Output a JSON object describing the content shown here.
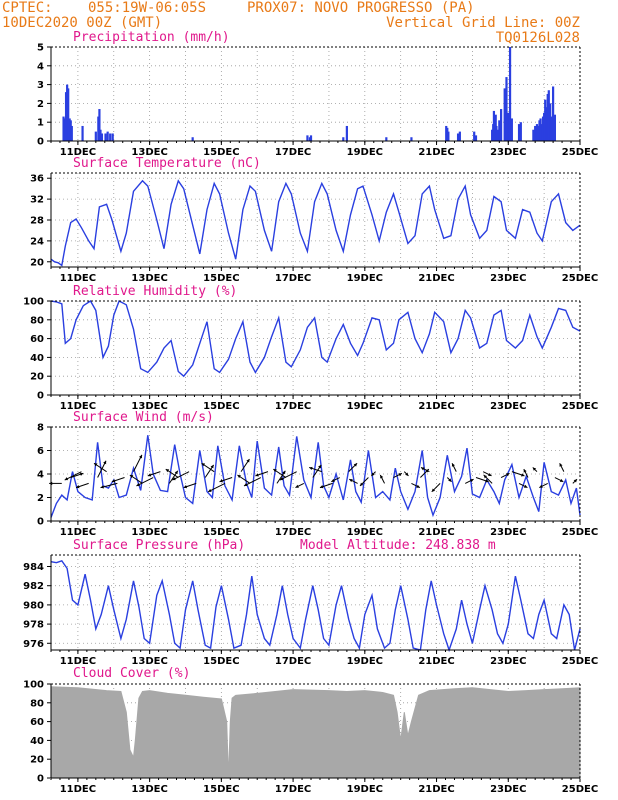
{
  "header": {
    "line1_left": "CPTEC:",
    "line1_coords": "055:19W-06:05S",
    "line1_station": "PROX07: NOVO PROGRESSO (PA)",
    "line2_left": "10DEC2020 00Z (GMT)",
    "line2_right": "Vertical Grid Line: 00Z",
    "line3_right": "TQ0126L028"
  },
  "colors": {
    "header": "#e87a17",
    "title": "#e0188c",
    "line": "#2a3fe0",
    "bar": "#2a3fe0",
    "cloud": "#a8a8a8",
    "arrow": "#000000"
  },
  "chart_data": [
    {
      "id": "precip",
      "type": "bar",
      "title": "Precipitation (mm/h)",
      "ylim": [
        0,
        5
      ],
      "yticks": [
        "0",
        "1",
        "2",
        "3",
        "4",
        "5"
      ],
      "xlim": [
        10.25,
        25
      ],
      "xticks": [
        "11DEC",
        "13DEC",
        "15DEC",
        "17DEC",
        "19DEC",
        "21DEC",
        "23DEC",
        "25DEC"
      ],
      "grid": true,
      "x": [
        10.6,
        10.63,
        10.67,
        10.7,
        10.73,
        10.77,
        10.8,
        10.83,
        11.13,
        11.5,
        11.57,
        11.6,
        11.63,
        11.67,
        11.77,
        11.83,
        11.9,
        11.97,
        14.2,
        17.4,
        17.47,
        17.5,
        18.4,
        18.5,
        19.6,
        20.3,
        21.27,
        21.3,
        21.33,
        21.6,
        21.65,
        22.05,
        22.1,
        22.55,
        22.58,
        22.6,
        22.65,
        22.67,
        22.7,
        22.75,
        22.8,
        22.9,
        22.95,
        23.0,
        23.05,
        23.1,
        23.3,
        23.35,
        23.7,
        23.75,
        23.8,
        23.83,
        23.87,
        23.9,
        23.93,
        23.97,
        24.0,
        24.03,
        24.07,
        24.1,
        24.13,
        24.17,
        24.2,
        24.25,
        24.3
      ],
      "values": [
        1.3,
        1.2,
        2.6,
        3.0,
        2.8,
        1.2,
        1.1,
        0.8,
        0.8,
        0.5,
        1.3,
        1.7,
        0.6,
        0.4,
        0.4,
        0.5,
        0.4,
        0.4,
        0.2,
        0.3,
        0.2,
        0.3,
        0.2,
        0.8,
        0.2,
        0.2,
        0.8,
        0.7,
        0.5,
        0.4,
        0.5,
        0.5,
        0.3,
        0.6,
        0.9,
        1.6,
        1.4,
        0.8,
        0.6,
        1.1,
        1.7,
        2.8,
        3.4,
        1.5,
        5.0,
        1.2,
        0.9,
        1.0,
        0.6,
        0.8,
        0.9,
        0.8,
        1.1,
        1.2,
        0.9,
        1.3,
        1.5,
        2.2,
        1.8,
        2.5,
        2.7,
        2.0,
        1.3,
        2.9,
        1.4
      ]
    },
    {
      "id": "temp",
      "type": "line",
      "title": "Surface Temperature (nC)",
      "ylim": [
        19,
        37
      ],
      "yticks": [
        "20",
        "24",
        "28",
        "32",
        "36"
      ],
      "xlim": [
        10.25,
        25
      ],
      "xticks": [
        "11DEC",
        "13DEC",
        "15DEC",
        "17DEC",
        "19DEC",
        "21DEC",
        "23DEC",
        "25DEC"
      ],
      "grid": true,
      "x": [
        10.25,
        10.35,
        10.45,
        10.55,
        10.65,
        10.8,
        10.95,
        11.1,
        11.3,
        11.45,
        11.6,
        11.8,
        11.95,
        12.2,
        12.35,
        12.55,
        12.8,
        12.95,
        13.2,
        13.4,
        13.6,
        13.8,
        13.95,
        14.2,
        14.4,
        14.6,
        14.8,
        14.95,
        15.2,
        15.4,
        15.6,
        15.8,
        15.95,
        16.2,
        16.4,
        16.6,
        16.8,
        16.95,
        17.2,
        17.4,
        17.6,
        17.8,
        17.95,
        18.2,
        18.4,
        18.6,
        18.8,
        18.95,
        19.2,
        19.4,
        19.6,
        19.8,
        19.95,
        20.2,
        20.4,
        20.6,
        20.8,
        20.95,
        21.2,
        21.4,
        21.6,
        21.8,
        21.95,
        22.2,
        22.4,
        22.6,
        22.8,
        22.95,
        23.2,
        23.4,
        23.6,
        23.8,
        23.95,
        24.2,
        24.4,
        24.6,
        24.8,
        25.0
      ],
      "values": [
        20.5,
        20.0,
        19.8,
        19.3,
        23.0,
        27.5,
        28.2,
        26.5,
        24.0,
        22.5,
        30.5,
        31.0,
        28.0,
        22.0,
        25.5,
        33.5,
        35.5,
        34.5,
        28.0,
        22.5,
        31.0,
        35.5,
        34.0,
        27.0,
        21.5,
        30.0,
        35.0,
        33.0,
        25.5,
        20.5,
        30.0,
        34.5,
        33.5,
        26.0,
        22.0,
        31.5,
        35.0,
        33.0,
        25.5,
        22.0,
        31.5,
        35.0,
        33.0,
        26.0,
        22.0,
        29.0,
        34.0,
        34.5,
        29.0,
        24.0,
        29.5,
        33.0,
        29.5,
        23.5,
        25.0,
        33.0,
        34.5,
        30.0,
        24.5,
        25.0,
        32.0,
        34.5,
        29.0,
        24.5,
        26.0,
        32.5,
        31.5,
        26.0,
        24.5,
        30.0,
        29.5,
        25.5,
        24.0,
        31.5,
        33.0,
        27.5,
        26.0,
        27.0
      ]
    },
    {
      "id": "rh",
      "type": "line",
      "title": "Relative Humidity (%)",
      "ylim": [
        0,
        100
      ],
      "yticks": [
        "0",
        "20",
        "40",
        "60",
        "80",
        "100"
      ],
      "xlim": [
        10.25,
        25
      ],
      "xticks": [
        "11DEC",
        "13DEC",
        "15DEC",
        "17DEC",
        "19DEC",
        "21DEC",
        "23DEC",
        "25DEC"
      ],
      "grid": true,
      "x": [
        10.25,
        10.4,
        10.55,
        10.65,
        10.8,
        10.95,
        11.15,
        11.35,
        11.5,
        11.7,
        11.85,
        12.0,
        12.15,
        12.35,
        12.55,
        12.75,
        12.95,
        13.2,
        13.4,
        13.6,
        13.8,
        13.95,
        14.2,
        14.4,
        14.6,
        14.8,
        14.95,
        15.2,
        15.4,
        15.6,
        15.8,
        15.95,
        16.2,
        16.4,
        16.6,
        16.8,
        16.95,
        17.2,
        17.4,
        17.6,
        17.8,
        17.95,
        18.2,
        18.4,
        18.6,
        18.8,
        18.95,
        19.2,
        19.4,
        19.6,
        19.8,
        19.95,
        20.2,
        20.4,
        20.6,
        20.8,
        20.95,
        21.2,
        21.4,
        21.6,
        21.8,
        21.95,
        22.2,
        22.4,
        22.6,
        22.8,
        22.95,
        23.2,
        23.4,
        23.6,
        23.8,
        23.95,
        24.2,
        24.4,
        24.6,
        24.8,
        25.0
      ],
      "values": [
        100,
        99,
        97,
        55,
        60,
        80,
        95,
        100,
        90,
        40,
        52,
        85,
        100,
        96,
        70,
        28,
        24,
        35,
        50,
        58,
        25,
        20,
        32,
        55,
        78,
        28,
        24,
        38,
        60,
        78,
        35,
        24,
        40,
        62,
        82,
        35,
        30,
        48,
        72,
        82,
        40,
        35,
        60,
        75,
        55,
        42,
        55,
        82,
        80,
        48,
        55,
        80,
        88,
        60,
        45,
        65,
        88,
        78,
        45,
        60,
        90,
        82,
        50,
        55,
        85,
        90,
        58,
        50,
        58,
        85,
        62,
        50,
        72,
        92,
        90,
        72,
        68
      ]
    },
    {
      "id": "wind",
      "type": "line",
      "title": "Surface Wind (m/s)",
      "ylim": [
        0,
        8
      ],
      "yticks": [
        "0",
        "2",
        "4",
        "6",
        "8"
      ],
      "xlim": [
        10.25,
        25
      ],
      "xticks": [
        "11DEC",
        "13DEC",
        "15DEC",
        "17DEC",
        "19DEC",
        "21DEC",
        "23DEC",
        "25DEC"
      ],
      "grid": true,
      "x": [
        10.25,
        10.4,
        10.55,
        10.7,
        10.85,
        11.0,
        11.2,
        11.4,
        11.55,
        11.7,
        11.85,
        12.0,
        12.15,
        12.35,
        12.55,
        12.75,
        12.95,
        13.1,
        13.3,
        13.5,
        13.7,
        13.85,
        14.0,
        14.2,
        14.4,
        14.6,
        14.75,
        14.9,
        15.1,
        15.3,
        15.5,
        15.7,
        15.85,
        16.0,
        16.2,
        16.4,
        16.6,
        16.75,
        16.9,
        17.1,
        17.3,
        17.5,
        17.7,
        17.85,
        18.0,
        18.2,
        18.4,
        18.6,
        18.75,
        18.9,
        19.1,
        19.3,
        19.5,
        19.7,
        19.85,
        20.0,
        20.2,
        20.4,
        20.6,
        20.75,
        20.9,
        21.1,
        21.3,
        21.5,
        21.7,
        21.85,
        22.0,
        22.2,
        22.4,
        22.6,
        22.75,
        22.9,
        23.1,
        23.3,
        23.5,
        23.7,
        23.85,
        24.0,
        24.2,
        24.4,
        24.6,
        24.75,
        24.9,
        25.0
      ],
      "values": [
        0.3,
        1.5,
        2.2,
        1.8,
        4.2,
        2.5,
        2.0,
        1.8,
        6.7,
        3.0,
        2.8,
        3.5,
        2.0,
        2.2,
        4.5,
        2.6,
        7.3,
        4.0,
        2.6,
        2.5,
        6.5,
        4.0,
        2.0,
        1.5,
        6.0,
        2.5,
        2.0,
        6.4,
        3.0,
        1.8,
        6.4,
        3.2,
        2.0,
        6.8,
        2.8,
        2.2,
        6.3,
        3.0,
        2.2,
        7.2,
        3.5,
        2.0,
        6.7,
        3.0,
        2.0,
        4.0,
        1.8,
        5.2,
        2.5,
        1.6,
        6.0,
        2.0,
        2.5,
        1.8,
        4.5,
        2.5,
        1.0,
        2.5,
        6.0,
        2.0,
        0.5,
        2.0,
        5.6,
        2.5,
        3.8,
        6.2,
        2.3,
        2.0,
        3.5,
        2.5,
        1.5,
        3.5,
        4.8,
        2.0,
        3.8,
        2.0,
        0.8,
        5.0,
        2.5,
        2.2,
        3.5,
        1.5,
        2.8,
        0.5
      ]
    },
    {
      "id": "pres",
      "type": "line",
      "title": "Surface Pressure (hPa)",
      "annotation": "Model Altitude: 248.838 m",
      "ylim": [
        975.3,
        985.2
      ],
      "yticks": [
        "976",
        "978",
        "980",
        "982",
        "984"
      ],
      "xlim": [
        10.25,
        25
      ],
      "xticks": [
        "11DEC",
        "13DEC",
        "15DEC",
        "17DEC",
        "19DEC",
        "21DEC",
        "23DEC",
        "25DEC"
      ],
      "grid": true,
      "x": [
        10.25,
        10.4,
        10.55,
        10.7,
        10.85,
        11.0,
        11.2,
        11.35,
        11.5,
        11.65,
        11.85,
        12.0,
        12.2,
        12.35,
        12.55,
        12.7,
        12.85,
        13.0,
        13.2,
        13.35,
        13.55,
        13.7,
        13.85,
        14.0,
        14.2,
        14.35,
        14.55,
        14.7,
        14.85,
        15.0,
        15.2,
        15.35,
        15.55,
        15.7,
        15.85,
        16.0,
        16.2,
        16.35,
        16.55,
        16.7,
        16.85,
        17.0,
        17.2,
        17.35,
        17.55,
        17.7,
        17.85,
        18.0,
        18.2,
        18.35,
        18.55,
        18.7,
        18.85,
        19.0,
        19.2,
        19.35,
        19.55,
        19.7,
        19.85,
        20.0,
        20.2,
        20.35,
        20.55,
        20.7,
        20.85,
        21.0,
        21.2,
        21.35,
        21.55,
        21.7,
        21.85,
        22.0,
        22.2,
        22.35,
        22.55,
        22.7,
        22.85,
        23.0,
        23.2,
        23.35,
        23.55,
        23.7,
        23.85,
        24.0,
        24.2,
        24.35,
        24.55,
        24.7,
        24.85,
        25.0
      ],
      "values": [
        984.5,
        984.4,
        984.6,
        983.8,
        980.5,
        980.0,
        983.2,
        980.5,
        977.5,
        979.0,
        982.0,
        979.5,
        976.5,
        978.5,
        982.5,
        979.8,
        976.5,
        976.0,
        981.0,
        982.5,
        979.0,
        976.0,
        975.5,
        979.5,
        982.5,
        979.5,
        975.8,
        975.5,
        979.8,
        982.0,
        978.5,
        975.5,
        975.8,
        979.0,
        983.0,
        979.0,
        976.5,
        975.8,
        979.0,
        982.0,
        979.0,
        976.5,
        975.5,
        978.5,
        982.0,
        979.5,
        976.5,
        975.8,
        980.0,
        982.0,
        978.5,
        976.5,
        975.5,
        979.0,
        981.0,
        977.5,
        975.5,
        976.0,
        979.5,
        982.0,
        978.5,
        975.5,
        975.0,
        979.5,
        982.5,
        980.0,
        977.0,
        975.0,
        977.5,
        980.5,
        978.0,
        976.0,
        979.5,
        982.0,
        979.5,
        977.0,
        976.0,
        978.0,
        983.0,
        980.5,
        977.0,
        976.5,
        979.0,
        980.5,
        977.0,
        976.5,
        980.0,
        979.0,
        975.0,
        977.5
      ]
    },
    {
      "id": "cloud",
      "type": "area",
      "title": "Cloud Cover (%)",
      "ylim": [
        0,
        100
      ],
      "yticks": [
        "0",
        "20",
        "40",
        "60",
        "80",
        "100"
      ],
      "xlim": [
        10.25,
        25
      ],
      "xticks": [
        "11DEC",
        "13DEC",
        "15DEC",
        "17DEC",
        "19DEC",
        "21DEC",
        "23DEC",
        "25DEC"
      ],
      "grid": true,
      "x": [
        10.25,
        11.0,
        11.8,
        12.2,
        12.35,
        12.45,
        12.55,
        12.6,
        12.7,
        12.8,
        13.0,
        13.5,
        14.0,
        14.5,
        15.0,
        15.15,
        15.2,
        15.25,
        15.3,
        15.4,
        16.0,
        16.5,
        17.0,
        18.0,
        18.5,
        19.0,
        19.5,
        19.8,
        19.9,
        20.0,
        20.1,
        20.2,
        20.3,
        20.5,
        20.8,
        21.5,
        22.0,
        22.5,
        23.0,
        23.5,
        24.0,
        24.5,
        25.0
      ],
      "values": [
        97,
        96,
        93,
        92,
        70,
        30,
        22,
        40,
        85,
        92,
        93,
        90,
        88,
        86,
        84,
        60,
        0,
        60,
        85,
        88,
        90,
        92,
        94,
        93,
        92,
        93,
        91,
        88,
        70,
        40,
        70,
        45,
        60,
        88,
        93,
        95,
        96,
        94,
        92,
        93,
        94,
        95,
        96
      ]
    }
  ],
  "wind_vectors": {
    "x": [
      10.55,
      10.8,
      11.1,
      11.3,
      11.55,
      11.8,
      12.1,
      12.3,
      12.55,
      12.8,
      13.1,
      13.3,
      13.55,
      13.8,
      14.1,
      14.3,
      14.55,
      14.8,
      15.1,
      15.3,
      15.55,
      15.8,
      16.1,
      16.3,
      16.55,
      16.8,
      17.1,
      17.3,
      17.55,
      17.8,
      18.1,
      18.3,
      18.55,
      18.8,
      19.1,
      19.3,
      19.55,
      19.8,
      20.1,
      20.3,
      20.55,
      20.8,
      21.1,
      21.3,
      21.55,
      21.8,
      22.1,
      22.3,
      22.55,
      22.8,
      23.1,
      23.3,
      23.55,
      23.8,
      24.1,
      24.3,
      24.55,
      24.8
    ],
    "u": [
      -3,
      3,
      -4,
      -3,
      2,
      -3,
      -4,
      -3,
      2,
      -3,
      -4,
      -3,
      2,
      -3,
      -4,
      -3,
      2,
      -3,
      -4,
      -3,
      2,
      -3,
      -4,
      -3,
      2,
      -3,
      -4,
      -2,
      2,
      -3,
      -3,
      -2,
      2,
      -2,
      -2,
      -1,
      -1,
      2,
      1,
      2,
      2,
      -2,
      -2,
      1,
      -1,
      2,
      3,
      2,
      -2,
      2,
      3,
      2,
      -1,
      -1,
      -2,
      2,
      -1,
      1
    ],
    "v": [
      0,
      1,
      -2,
      -1,
      4,
      2,
      -1,
      -1,
      4,
      2,
      -2,
      -1,
      3,
      2,
      -2,
      -1,
      3,
      2,
      -2,
      -1,
      3,
      2,
      -2,
      -1,
      3,
      2,
      -2,
      -1,
      3,
      1,
      -1,
      -1,
      2,
      1,
      -2,
      -1,
      2,
      1,
      -1,
      -1,
      2,
      1,
      -2,
      -1,
      2,
      1,
      -1,
      -1,
      2,
      1,
      -1,
      -1,
      2,
      1,
      -1,
      -1,
      2,
      1
    ]
  }
}
